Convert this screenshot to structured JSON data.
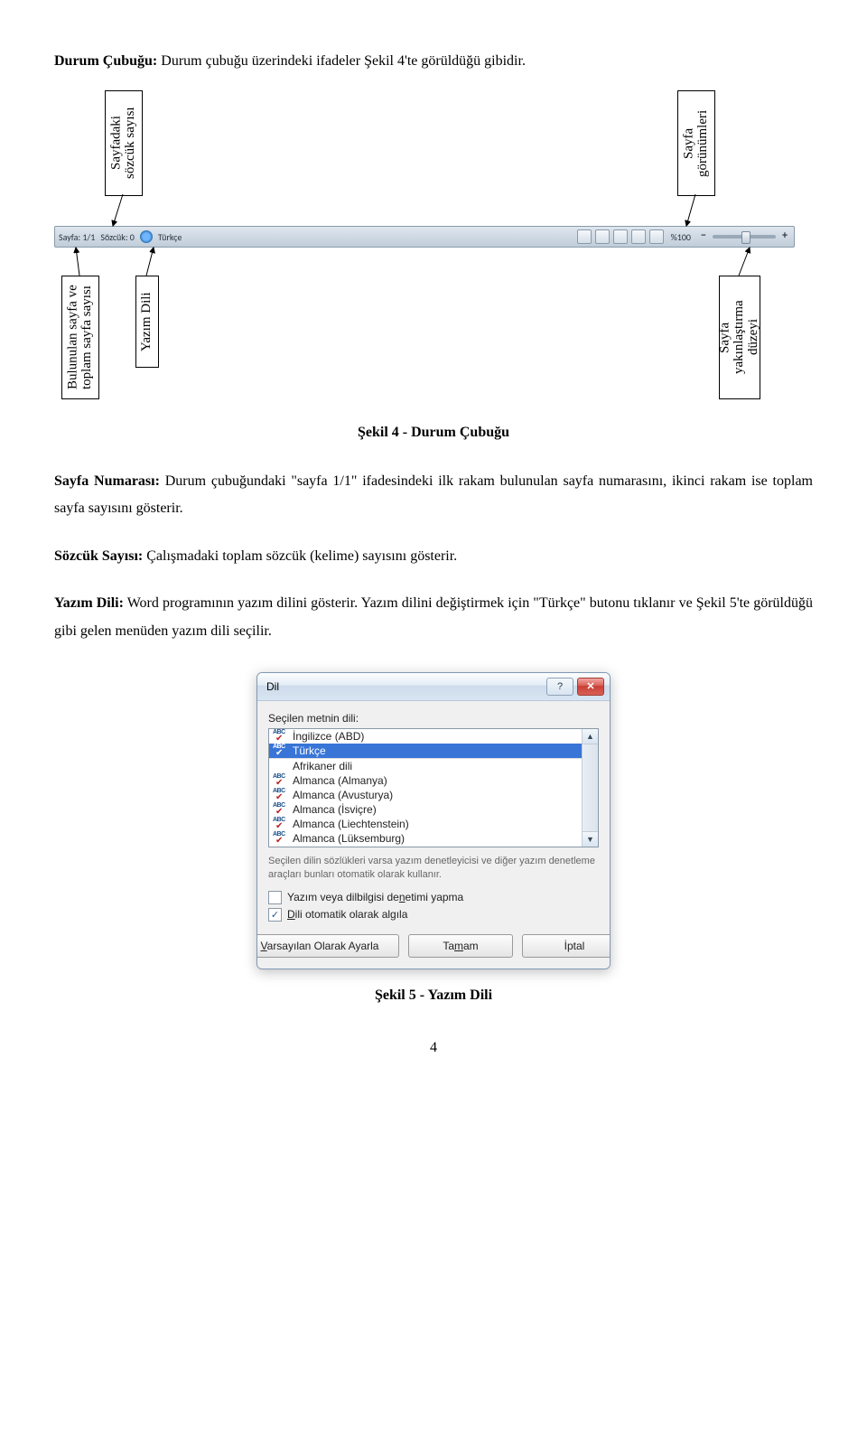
{
  "intro": {
    "bold": "Durum Çubuğu:",
    "rest": " Durum çubuğu üzerindeki ifadeler Şekil 4'te görüldüğü gibidir."
  },
  "diagram": {
    "labels": {
      "top_word_count": "Sayfadaki\nsözcük sayısı",
      "top_views": "Sayfa\ngörünümleri",
      "bottom_page_total": "Bulunulan sayfa ve\ntoplam sayfa sayısı",
      "bottom_lang": "Yazım Dili",
      "bottom_zoom": "Sayfa\nyakınlaştırma\ndüzeyi"
    },
    "statusbar": {
      "page": "Sayfa: 1/1",
      "words": "Sözcük: 0",
      "lang": "Türkçe",
      "zoom": "%100"
    }
  },
  "caption4": "Şekil 4 - Durum Çubuğu",
  "p1": {
    "b": "Sayfa Numarası:",
    "t": " Durum çubuğundaki \"sayfa 1/1\" ifadesindeki ilk rakam bulunulan sayfa numarasını, ikinci rakam ise toplam sayfa sayısını gösterir."
  },
  "p2": {
    "b": "Sözcük Sayısı:",
    "t": " Çalışmadaki toplam sözcük (kelime) sayısını gösterir."
  },
  "p3": {
    "b": "Yazım Dili:",
    "t": " Word programının yazım dilini gösterir. Yazım dilini değiştirmek için \"Türkçe\" butonu tıklanır ve Şekil 5'te görüldüğü gibi gelen menüden yazım dili seçilir."
  },
  "dialog": {
    "title": "Dil",
    "label": "Seçilen metnin dili:",
    "items": [
      {
        "text": "İngilizce (ABD)",
        "icon": true,
        "sel": false
      },
      {
        "text": "Türkçe",
        "icon": true,
        "sel": true
      },
      {
        "text": "Afrikaner dili",
        "icon": false,
        "sel": false,
        "sep_before": true
      },
      {
        "text": "Almanca (Almanya)",
        "icon": true,
        "sel": false
      },
      {
        "text": "Almanca (Avusturya)",
        "icon": true,
        "sel": false
      },
      {
        "text": "Almanca (İsviçre)",
        "icon": true,
        "sel": false
      },
      {
        "text": "Almanca (Liechtenstein)",
        "icon": true,
        "sel": false
      },
      {
        "text": "Almanca (Lüksemburg)",
        "icon": true,
        "sel": false
      }
    ],
    "hint": "Seçilen dilin sözlükleri varsa yazım denetleyicisi ve diğer yazım denetleme araçları bunları otomatik olarak kullanır.",
    "chk1": "Yazım veya dilbilgisi denetimi yapma",
    "chk2": "Dili otomatik olarak algıla",
    "chk1_checked": false,
    "chk2_checked": true,
    "btn_default_u": "V",
    "btn_default_rest": "arsayılan Olarak Ayarla",
    "btn_ok_pre": "Ta",
    "btn_ok_u": "m",
    "btn_ok_post": "am",
    "btn_cancel": "İptal"
  },
  "caption5": "Şekil 5 - Yazım Dili",
  "pagenum": "4",
  "colors": {
    "selection": "#3875d7",
    "statusbar_top": "#dfe6ef",
    "statusbar_bottom": "#c0cdd9"
  }
}
